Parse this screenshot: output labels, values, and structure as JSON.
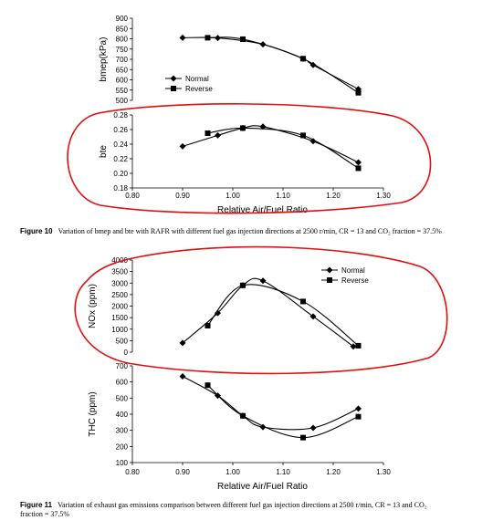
{
  "chart_data": [
    {
      "type": "line",
      "ylabel": "bmep(kPa)",
      "xlim": [
        0.8,
        1.3
      ],
      "ylim": [
        500,
        900
      ],
      "yticks": [
        500,
        550,
        600,
        650,
        700,
        750,
        800,
        850,
        900
      ],
      "yticklabels": [
        "500",
        "550",
        "600",
        "650",
        "700",
        "750",
        "800",
        "850",
        "900"
      ],
      "legend": "left",
      "series": [
        {
          "name": "Normal",
          "marker": "diamond",
          "x": [
            0.9,
            0.97,
            1.06,
            1.14,
            1.16,
            1.25
          ],
          "y": [
            805,
            804,
            773,
            703,
            672,
            555
          ]
        },
        {
          "name": "Reverse",
          "marker": "square",
          "x": [
            0.95,
            1.02,
            1.14,
            1.25
          ],
          "y": [
            805,
            798,
            703,
            537
          ]
        }
      ]
    },
    {
      "type": "line",
      "ylabel": "bte",
      "xlabel": "Relative Air/Fuel Ratio",
      "xlim": [
        0.8,
        1.3
      ],
      "ylim": [
        0.18,
        0.28
      ],
      "xticks": [
        0.8,
        0.9,
        1.0,
        1.1,
        1.2,
        1.3
      ],
      "xticklabels": [
        "0.80",
        "0.90",
        "1.00",
        "1.10",
        "1.20",
        "1.30"
      ],
      "yticks": [
        0.18,
        0.2,
        0.22,
        0.24,
        0.26,
        0.28
      ],
      "yticklabels": [
        "0.18",
        "0.20",
        "0.22",
        "0.24",
        "0.26",
        "0.28"
      ],
      "series": [
        {
          "name": "Normal",
          "marker": "diamond",
          "x": [
            0.9,
            0.97,
            1.02,
            1.06,
            1.16,
            1.25
          ],
          "y": [
            0.237,
            0.252,
            0.262,
            0.264,
            0.244,
            0.215
          ]
        },
        {
          "name": "Reverse",
          "marker": "square",
          "x": [
            0.95,
            1.02,
            1.14,
            1.25
          ],
          "y": [
            0.255,
            0.262,
            0.252,
            0.207
          ]
        }
      ]
    },
    {
      "type": "line",
      "ylabel": "NOx (ppm)",
      "xlim": [
        0.8,
        1.3
      ],
      "ylim": [
        0,
        4000
      ],
      "yticks": [
        0,
        500,
        1000,
        1500,
        2000,
        2500,
        3000,
        3500,
        4000
      ],
      "yticklabels": [
        "0",
        "500",
        "1000",
        "1500",
        "2000",
        "2500",
        "3000",
        "3500",
        "4000"
      ],
      "legend": "top-right",
      "series": [
        {
          "name": "Normal",
          "marker": "diamond",
          "x": [
            0.9,
            0.97,
            1.02,
            1.06,
            1.16,
            1.24
          ],
          "y": [
            400,
            1700,
            2900,
            3100,
            1550,
            250
          ]
        },
        {
          "name": "Reverse",
          "marker": "square",
          "x": [
            0.95,
            1.02,
            1.14,
            1.25
          ],
          "y": [
            1150,
            2900,
            2200,
            280
          ]
        }
      ]
    },
    {
      "type": "line",
      "ylabel": "THC (ppm)",
      "xlabel": "Relative Air/Fuel Ratio",
      "xlim": [
        0.8,
        1.3
      ],
      "ylim": [
        100,
        700
      ],
      "xticks": [
        0.8,
        0.9,
        1.0,
        1.1,
        1.2,
        1.3
      ],
      "xticklabels": [
        "0.80",
        "0.90",
        "1.00",
        "1.10",
        "1.20",
        "1.30"
      ],
      "yticks": [
        100,
        200,
        300,
        400,
        500,
        600,
        700
      ],
      "yticklabels": [
        "100",
        "200",
        "300",
        "400",
        "500",
        "600",
        "700"
      ],
      "series": [
        {
          "name": "Normal",
          "marker": "diamond",
          "x": [
            0.9,
            0.97,
            1.02,
            1.06,
            1.16,
            1.25
          ],
          "y": [
            635,
            515,
            390,
            320,
            315,
            435
          ]
        },
        {
          "name": "Reverse",
          "marker": "square",
          "x": [
            0.95,
            1.02,
            1.14,
            1.25
          ],
          "y": [
            580,
            390,
            255,
            385
          ]
        }
      ]
    }
  ],
  "legend_labels": {
    "normal": "Normal",
    "reverse": "Reverse"
  },
  "captions": {
    "fig10_label": "Figure 10",
    "fig10_text": "Variation of bmep and bte with RAFR with different fuel gas injection directions at 2500 r/min, CR = 13 and CO₂ fraction = 37.5%",
    "fig11_label": "Figure 11",
    "fig11_text_line1": "Variation of exhaust gas emissions comparison between different fuel gas injection directions at 2500 r/min, CR = 13 and CO₂",
    "fig11_text_line2": "fraction = 37.5%"
  },
  "colors": {
    "lines": "#000000",
    "annotation": "#e01010"
  }
}
